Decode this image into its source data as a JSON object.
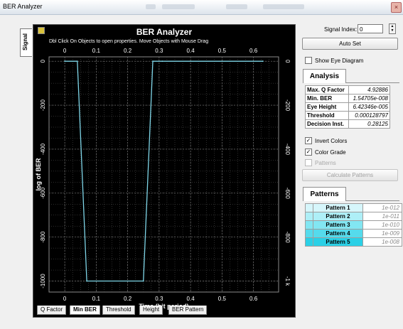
{
  "window": {
    "title": "BER Analyzer",
    "close_glyph": "×"
  },
  "side_tab": "Signal",
  "plot": {
    "title": "BER Analyzer",
    "subtitle": "Dbl Click On Objects to open properties.  Move Objects with Mouse Drag",
    "background": "#000000",
    "trace_color": "#7fd6e8",
    "grid_color": "#5a5a5a",
    "bottom_tabs": [
      {
        "label": "Q Factor",
        "active": false
      },
      {
        "label": "Min BER",
        "active": true
      },
      {
        "label": "Threshold",
        "active": false
      },
      {
        "label": "Height",
        "active": false
      },
      {
        "label": "BER Pattern",
        "active": false
      }
    ]
  },
  "chart_data": {
    "type": "line",
    "xlabel": "Time (bit period)",
    "ylabel": "log of BER",
    "xlim": [
      -0.05,
      0.68
    ],
    "ylim": [
      -1050,
      20
    ],
    "x_ticks": [
      "0",
      "0.1",
      "0.2",
      "0.3",
      "0.4",
      "0.5",
      "0.6"
    ],
    "y_ticks_left": [
      "0",
      "-200",
      "-400",
      "-600",
      "-800",
      "-1000"
    ],
    "y_ticks_right": [
      "0",
      "-200",
      "-400",
      "-600",
      "-800",
      "-1 k"
    ],
    "series": [
      {
        "x": [
          0.0,
          0.04,
          0.07,
          0.25,
          0.28,
          0.31,
          0.63
        ],
        "y": [
          0,
          0,
          -1000,
          -1000,
          0,
          0,
          0
        ]
      }
    ],
    "grid": true
  },
  "panel": {
    "signal_index_label": "Signal Index:",
    "signal_index_value": "0",
    "spin_up": "▲",
    "spin_down": "▼",
    "auto_set_label": "Auto Set",
    "show_eye_label": "Show Eye Diagram",
    "show_eye_checked": false,
    "analysis_tab": "Analysis",
    "analysis_rows": [
      {
        "key": "Max. Q Factor",
        "value": "4.92886"
      },
      {
        "key": "Min. BER",
        "value": "1.54705e-008"
      },
      {
        "key": "Eye Height",
        "value": "6.42346e-005"
      },
      {
        "key": "Threshold",
        "value": "0.000128797"
      },
      {
        "key": "Decision Inst.",
        "value": "0.28125"
      }
    ],
    "invert_colors_label": "Invert Colors",
    "invert_colors_checked": true,
    "color_grade_label": "Color Grade",
    "color_grade_checked": true,
    "patterns_check_label": "Patterns",
    "patterns_check_checked": false,
    "check_glyph": "✓",
    "calc_patterns_label": "Calculate Patterns",
    "patterns_tab": "Patterns",
    "patterns": [
      {
        "name": "Pattern 1",
        "value": "1e-012",
        "color": "#d6f6fb"
      },
      {
        "name": "Pattern 2",
        "value": "1e-011",
        "color": "#aeeff7"
      },
      {
        "name": "Pattern 3",
        "value": "1e-010",
        "color": "#82e6f2"
      },
      {
        "name": "Pattern 4",
        "value": "1e-009",
        "color": "#55dbec"
      },
      {
        "name": "Pattern 5",
        "value": "1e-008",
        "color": "#2ad0e6"
      }
    ]
  }
}
